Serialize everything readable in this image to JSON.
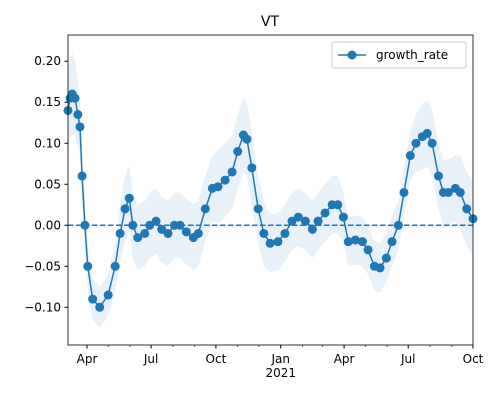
{
  "chart_data": {
    "type": "line",
    "title": "VT",
    "x": [
      64,
      67,
      70,
      74,
      78,
      81,
      84,
      88,
      92,
      99,
      109,
      121,
      131,
      138,
      145,
      151,
      156,
      163,
      173,
      180,
      189,
      197,
      206,
      215,
      223,
      232,
      242,
      249,
      259,
      269,
      277,
      287,
      297,
      305,
      313,
      318,
      325,
      334,
      342,
      351,
      362,
      372,
      382,
      391,
      401,
      411,
      419,
      429,
      439,
      447,
      455,
      462,
      472,
      482,
      490,
      499,
      507,
      516,
      524,
      533,
      541,
      550,
      558,
      567,
      574,
      581,
      590,
      597,
      604,
      614,
      621,
      630,
      639
    ],
    "series": [
      {
        "name": "growth_rate",
        "color": "#1f77b4",
        "values": [
          0.14,
          0.155,
          0.16,
          0.155,
          0.135,
          0.12,
          0.06,
          0.0,
          -0.05,
          -0.09,
          -0.1,
          -0.085,
          -0.05,
          -0.01,
          0.02,
          0.033,
          0.0,
          -0.015,
          -0.01,
          0.0,
          0.005,
          -0.005,
          -0.01,
          0.0,
          0.0,
          -0.008,
          -0.015,
          -0.01,
          0.02,
          0.045,
          0.047,
          0.055,
          0.065,
          0.09,
          0.11,
          0.105,
          0.07,
          0.02,
          -0.01,
          -0.022,
          -0.02,
          -0.01,
          0.005,
          0.01,
          0.005,
          -0.005,
          0.005,
          0.015,
          0.025,
          0.025,
          0.01,
          -0.02,
          -0.018,
          -0.02,
          -0.03,
          -0.05,
          -0.052,
          -0.04,
          -0.02,
          0.0,
          0.04,
          0.085,
          0.1,
          0.108,
          0.112,
          0.1,
          0.06,
          0.04,
          0.04,
          0.045,
          0.04,
          0.02,
          0.008
        ],
        "band": {
          "color": "#1f77b4",
          "half_width": [
            0.05,
            0.05,
            0.05,
            0.045,
            0.04,
            0.035,
            0.03,
            0.03,
            0.03,
            0.025,
            0.025,
            0.025,
            0.03,
            0.035,
            0.04,
            0.04,
            0.04,
            0.04,
            0.04,
            0.04,
            0.04,
            0.04,
            0.04,
            0.04,
            0.04,
            0.04,
            0.04,
            0.04,
            0.04,
            0.04,
            0.045,
            0.045,
            0.045,
            0.045,
            0.045,
            0.045,
            0.045,
            0.04,
            0.04,
            0.035,
            0.035,
            0.035,
            0.035,
            0.035,
            0.035,
            0.035,
            0.035,
            0.035,
            0.035,
            0.035,
            0.03,
            0.03,
            0.03,
            0.03,
            0.03,
            0.03,
            0.03,
            0.03,
            0.03,
            0.03,
            0.03,
            0.03,
            0.035,
            0.04,
            0.04,
            0.04,
            0.04,
            0.04,
            0.04,
            0.04,
            0.045,
            0.045,
            0.045
          ]
        }
      }
    ],
    "hline": {
      "value": 0,
      "style": "dashed",
      "color": "#1f77b4"
    },
    "xlim": [
      64,
      639
    ],
    "xticks": [
      {
        "value": 91,
        "label": "Apr"
      },
      {
        "value": 182,
        "label": "Jul"
      },
      {
        "value": 274,
        "label": "Oct"
      },
      {
        "value": 366,
        "label": "Jan\n2021"
      },
      {
        "value": 456,
        "label": "Apr"
      },
      {
        "value": 547,
        "label": "Jul"
      },
      {
        "value": 639,
        "label": "Oct"
      }
    ],
    "xminorticks": [
      121,
      152,
      213,
      244,
      305,
      335,
      397,
      425,
      486,
      517,
      578,
      609
    ],
    "ylim": [
      -0.146,
      0.232
    ],
    "yticks": [
      {
        "value": -0.1,
        "label": "−0.10"
      },
      {
        "value": -0.05,
        "label": "−0.05"
      },
      {
        "value": 0,
        "label": "0.00"
      },
      {
        "value": 0.05,
        "label": "0.05"
      },
      {
        "value": 0.1,
        "label": "0.10"
      },
      {
        "value": 0.15,
        "label": "0.15"
      },
      {
        "value": 0.2,
        "label": "0.20"
      }
    ],
    "legend": "upper right"
  }
}
